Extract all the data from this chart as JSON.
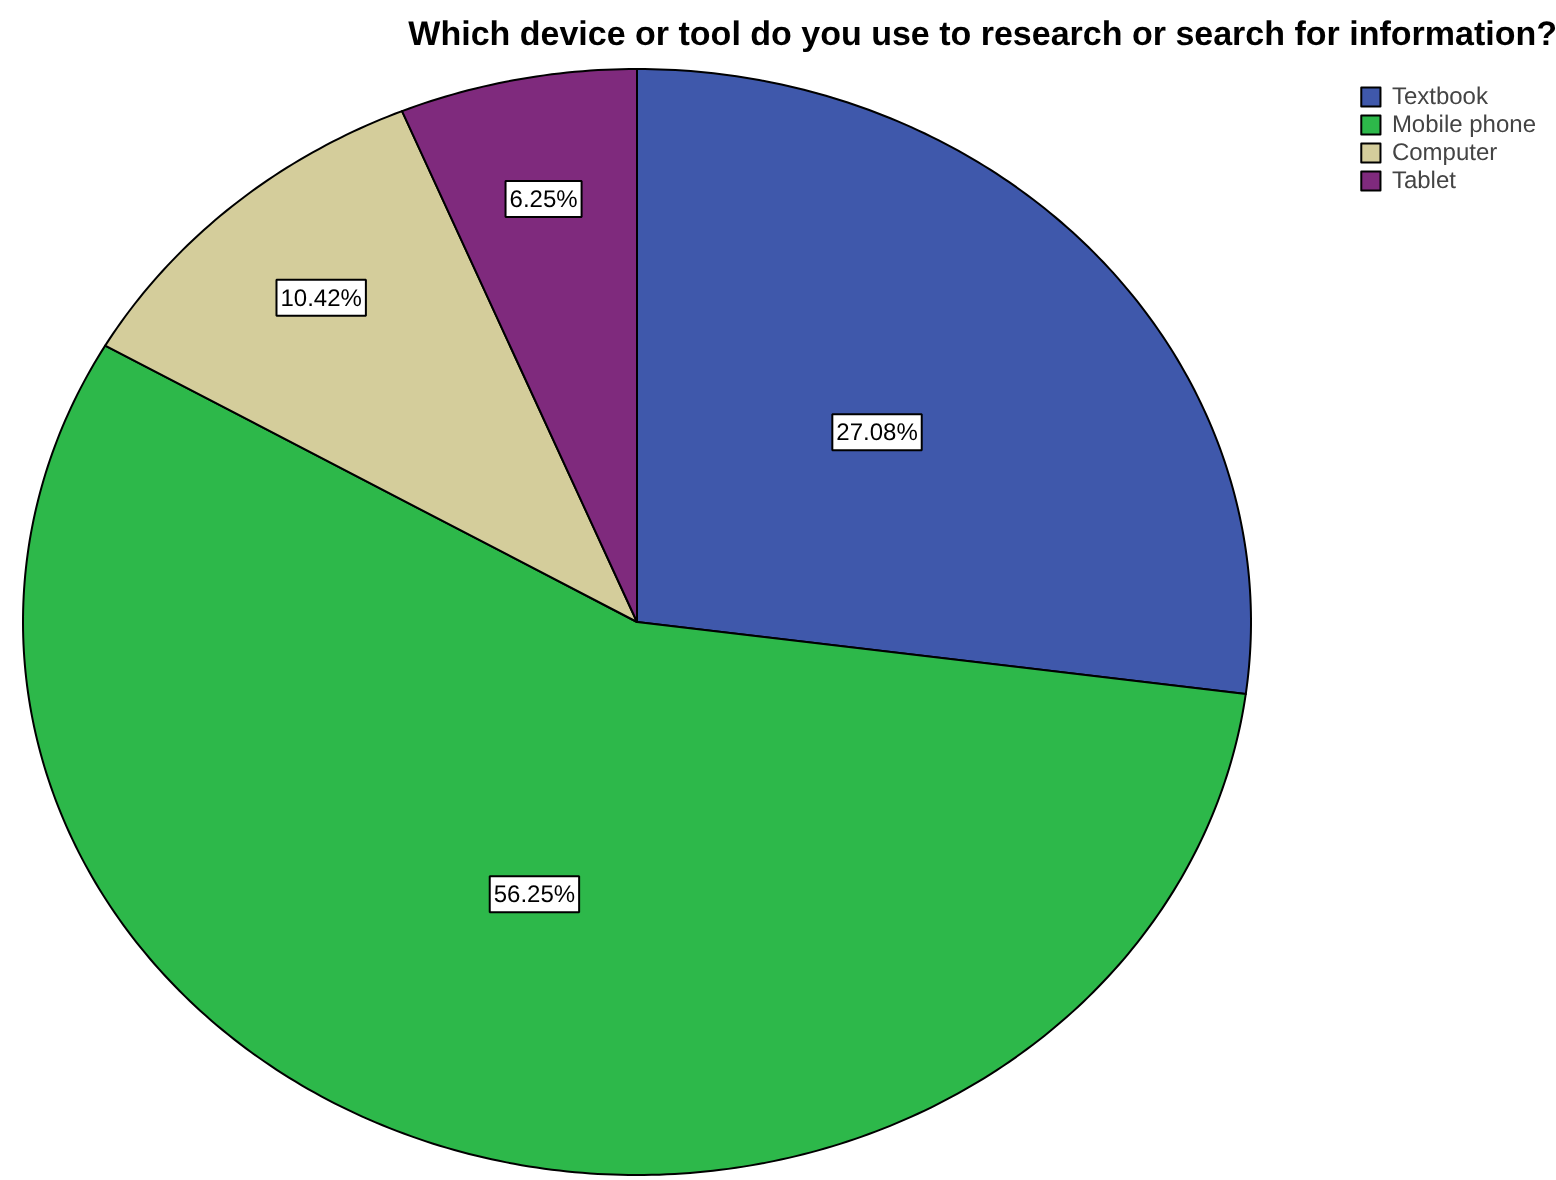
{
  "chart_data": {
    "type": "pie",
    "title": "Which device or tool do you use to research or search for information?",
    "categories": [
      "Textbook",
      "Mobile phone",
      "Computer",
      "Tablet"
    ],
    "values": [
      27.08,
      56.25,
      10.42,
      6.25
    ],
    "value_labels": [
      "27.08%",
      "56.25%",
      "10.42%",
      "6.25%"
    ],
    "colors": [
      "#3f58ab",
      "#2db84a",
      "#d4cd9b",
      "#7f2a7d"
    ],
    "legend": "top right"
  }
}
